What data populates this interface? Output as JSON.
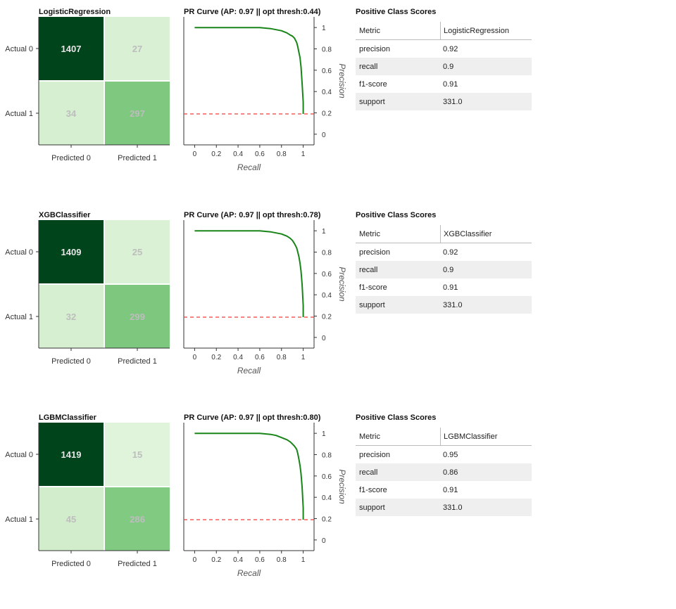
{
  "chart_data": [
    {
      "type": "heatmap",
      "title": "LogisticRegression",
      "row_labels": [
        "Actual 0",
        "Actual 1"
      ],
      "col_labels": [
        "Predicted 0",
        "Predicted 1"
      ],
      "values": [
        [
          1407,
          27
        ],
        [
          34,
          297
        ]
      ]
    },
    {
      "type": "line",
      "title": "PR Curve (AP: 0.97 || opt thresh:0.44)",
      "xlabel": "Recall",
      "ylabel": "Precision",
      "xlim": [
        -0.1,
        1.1
      ],
      "ylim": [
        -0.1,
        1.1
      ],
      "xticks": [
        "0",
        "0.2",
        "0.4",
        "0.6",
        "0.8",
        "1"
      ],
      "yticks": [
        "0",
        "0.2",
        "0.4",
        "0.6",
        "0.8",
        "1"
      ],
      "baseline": 0.19,
      "series": [
        {
          "x": [
            0,
            0.3,
            0.6,
            0.7,
            0.75,
            0.8,
            0.85,
            0.88,
            0.9,
            0.92,
            0.94,
            0.95,
            0.96,
            0.97,
            0.98,
            0.99,
            1,
            1
          ],
          "y": [
            1,
            1,
            1,
            0.99,
            0.98,
            0.97,
            0.95,
            0.93,
            0.92,
            0.9,
            0.86,
            0.82,
            0.77,
            0.72,
            0.63,
            0.48,
            0.3,
            0.19
          ]
        }
      ]
    },
    {
      "type": "table",
      "title": "Positive Class Scores",
      "columns": [
        "Metric",
        "LogisticRegression"
      ],
      "rows": [
        [
          "precision",
          "0.92"
        ],
        [
          "recall",
          "0.9"
        ],
        [
          "f1-score",
          "0.91"
        ],
        [
          "support",
          "331.0"
        ]
      ]
    },
    {
      "type": "heatmap",
      "title": "XGBClassifier",
      "row_labels": [
        "Actual 0",
        "Actual 1"
      ],
      "col_labels": [
        "Predicted 0",
        "Predicted 1"
      ],
      "values": [
        [
          1409,
          25
        ],
        [
          32,
          299
        ]
      ]
    },
    {
      "type": "line",
      "title": "PR Curve (AP: 0.97 || opt thresh:0.78)",
      "xlabel": "Recall",
      "ylabel": "Precision",
      "xlim": [
        -0.1,
        1.1
      ],
      "ylim": [
        -0.1,
        1.1
      ],
      "xticks": [
        "0",
        "0.2",
        "0.4",
        "0.6",
        "0.8",
        "1"
      ],
      "yticks": [
        "0",
        "0.2",
        "0.4",
        "0.6",
        "0.8",
        "1"
      ],
      "baseline": 0.19,
      "series": [
        {
          "x": [
            0,
            0.3,
            0.6,
            0.7,
            0.75,
            0.8,
            0.85,
            0.88,
            0.9,
            0.92,
            0.94,
            0.95,
            0.96,
            0.97,
            0.98,
            0.99,
            1,
            1
          ],
          "y": [
            1,
            1,
            1,
            0.99,
            0.98,
            0.97,
            0.95,
            0.93,
            0.91,
            0.88,
            0.84,
            0.8,
            0.76,
            0.7,
            0.62,
            0.5,
            0.3,
            0.19
          ]
        }
      ]
    },
    {
      "type": "table",
      "title": "Positive Class Scores",
      "columns": [
        "Metric",
        "XGBClassifier"
      ],
      "rows": [
        [
          "precision",
          "0.92"
        ],
        [
          "recall",
          "0.9"
        ],
        [
          "f1-score",
          "0.91"
        ],
        [
          "support",
          "331.0"
        ]
      ]
    },
    {
      "type": "heatmap",
      "title": "LGBMClassifier",
      "row_labels": [
        "Actual 0",
        "Actual 1"
      ],
      "col_labels": [
        "Predicted 0",
        "Predicted 1"
      ],
      "values": [
        [
          1419,
          15
        ],
        [
          45,
          286
        ]
      ]
    },
    {
      "type": "line",
      "title": "PR Curve (AP: 0.97 || opt thresh:0.80)",
      "xlabel": "Recall",
      "ylabel": "Precision",
      "xlim": [
        -0.1,
        1.1
      ],
      "ylim": [
        -0.1,
        1.1
      ],
      "xticks": [
        "0",
        "0.2",
        "0.4",
        "0.6",
        "0.8",
        "1"
      ],
      "yticks": [
        "0",
        "0.2",
        "0.4",
        "0.6",
        "0.8",
        "1"
      ],
      "baseline": 0.19,
      "series": [
        {
          "x": [
            0,
            0.3,
            0.6,
            0.7,
            0.75,
            0.8,
            0.85,
            0.88,
            0.9,
            0.92,
            0.94,
            0.95,
            0.96,
            0.97,
            0.98,
            0.99,
            1,
            1
          ],
          "y": [
            1,
            1,
            1,
            0.99,
            0.98,
            0.96,
            0.94,
            0.92,
            0.9,
            0.88,
            0.85,
            0.81,
            0.76,
            0.7,
            0.62,
            0.5,
            0.3,
            0.19
          ]
        }
      ]
    },
    {
      "type": "table",
      "title": "Positive Class Scores",
      "columns": [
        "Metric",
        "LGBMClassifier"
      ],
      "rows": [
        [
          "precision",
          "0.95"
        ],
        [
          "recall",
          "0.86"
        ],
        [
          "f1-score",
          "0.91"
        ],
        [
          "support",
          "331.0"
        ]
      ]
    }
  ],
  "colors": {
    "curve": "#188518",
    "baseline": "#f03c3c",
    "cell_text_dark_bg": "#e6e6e6",
    "cell_text_light_bg": "#bdbdbd"
  }
}
